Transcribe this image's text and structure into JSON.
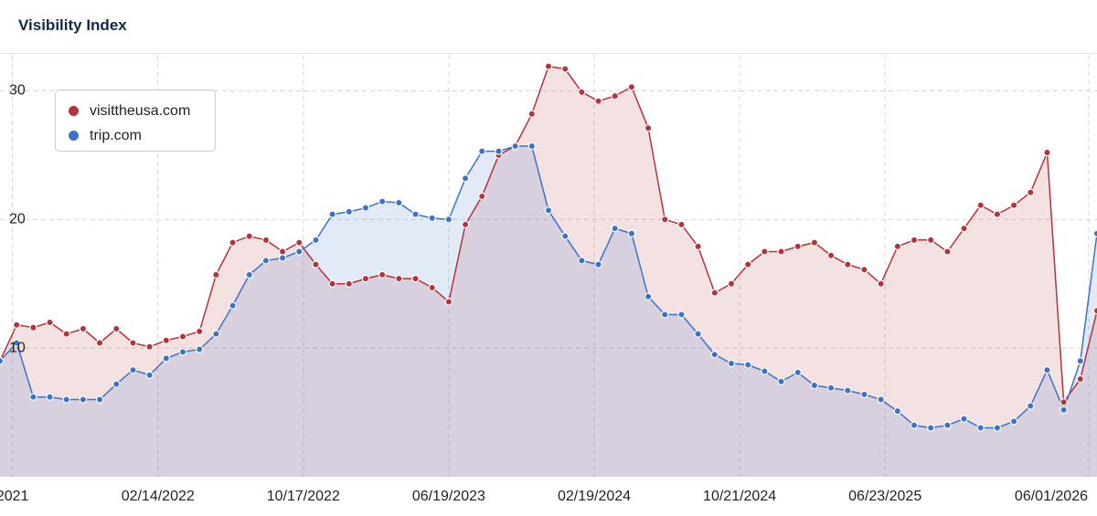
{
  "title": "Visibility Index",
  "chart_data": {
    "type": "area",
    "x": [
      "2021-05-24",
      "2021-06-21",
      "2021-07-19",
      "2021-08-16",
      "2021-09-13",
      "2021-10-11",
      "2021-11-08",
      "2021-12-06",
      "2022-01-03",
      "2022-01-31",
      "2022-02-28",
      "2022-03-28",
      "2022-04-25",
      "2022-05-23",
      "2022-06-20",
      "2022-07-18",
      "2022-08-15",
      "2022-09-12",
      "2022-10-10",
      "2022-11-07",
      "2022-12-05",
      "2023-01-02",
      "2023-01-30",
      "2023-02-27",
      "2023-03-27",
      "2023-04-24",
      "2023-05-22",
      "2023-06-19",
      "2023-07-17",
      "2023-08-14",
      "2023-09-11",
      "2023-10-09",
      "2023-11-06",
      "2023-12-04",
      "2024-01-01",
      "2024-01-29",
      "2024-02-26",
      "2024-03-25",
      "2024-04-22",
      "2024-05-20",
      "2024-06-17",
      "2024-07-15",
      "2024-08-12",
      "2024-09-09",
      "2024-10-07",
      "2024-11-04",
      "2024-12-02",
      "2024-12-30",
      "2025-01-27",
      "2025-02-24",
      "2025-03-24",
      "2025-04-21",
      "2025-05-19",
      "2025-06-16",
      "2025-07-14",
      "2025-08-11",
      "2025-09-08",
      "2025-10-06",
      "2025-11-03",
      "2025-12-01",
      "2025-12-29",
      "2026-01-26",
      "2026-02-23",
      "2026-03-23",
      "2026-04-20",
      "2026-05-18",
      "2026-06-15"
    ],
    "series": [
      {
        "name": "visittheusa.com",
        "color": "#b5333a",
        "values": [
          9.0,
          11.8,
          11.6,
          12.0,
          11.1,
          11.5,
          10.4,
          11.5,
          10.4,
          10.1,
          10.6,
          10.9,
          11.3,
          15.7,
          18.2,
          18.7,
          18.4,
          17.5,
          18.2,
          16.5,
          15.0,
          15.0,
          15.4,
          15.7,
          15.4,
          15.4,
          14.7,
          13.6,
          19.6,
          21.8,
          25.0,
          25.7,
          28.2,
          31.9,
          31.7,
          29.9,
          29.2,
          29.6,
          30.3,
          27.1,
          20.0,
          19.6,
          17.9,
          14.3,
          15.0,
          16.5,
          17.5,
          17.5,
          17.9,
          18.2,
          17.2,
          16.5,
          16.1,
          15.0,
          17.9,
          18.4,
          18.4,
          17.5,
          19.3,
          21.1,
          20.4,
          21.1,
          22.1,
          25.2,
          5.8,
          7.6,
          12.9
        ]
      },
      {
        "name": "trip.com",
        "color": "#3b73c8",
        "values": [
          9.0,
          10.4,
          6.2,
          6.2,
          6.0,
          6.0,
          6.0,
          7.2,
          8.3,
          7.9,
          9.2,
          9.7,
          9.9,
          11.1,
          13.3,
          15.7,
          16.8,
          17.0,
          17.5,
          18.4,
          20.4,
          20.6,
          20.9,
          21.4,
          21.3,
          20.4,
          20.1,
          20.0,
          23.2,
          25.3,
          25.3,
          25.7,
          25.7,
          20.7,
          18.7,
          16.8,
          16.5,
          19.3,
          18.9,
          14.0,
          12.6,
          12.6,
          11.1,
          9.5,
          8.8,
          8.7,
          8.2,
          7.4,
          8.1,
          7.1,
          6.9,
          6.7,
          6.4,
          6.0,
          5.1,
          4.0,
          3.8,
          4.0,
          4.5,
          3.8,
          3.8,
          4.3,
          5.5,
          8.3,
          5.2,
          9.0,
          18.9
        ]
      }
    ],
    "xlim": [
      "2021-05-24",
      "2026-06-15"
    ],
    "xticks": [
      {
        "value": "2021-06-14",
        "label": "2021"
      },
      {
        "value": "2022-02-14",
        "label": "02/14/2022"
      },
      {
        "value": "2022-10-17",
        "label": "10/17/2022"
      },
      {
        "value": "2023-06-19",
        "label": "06/19/2023"
      },
      {
        "value": "2024-02-19",
        "label": "02/19/2024"
      },
      {
        "value": "2024-10-21",
        "label": "10/21/2024"
      },
      {
        "value": "2025-06-23",
        "label": "06/23/2025"
      },
      {
        "value": "2026-06-01",
        "label": "06/01/2026"
      }
    ],
    "ylim": [
      0,
      32.8
    ],
    "yticks": [
      10,
      20,
      30
    ],
    "grid": true
  }
}
